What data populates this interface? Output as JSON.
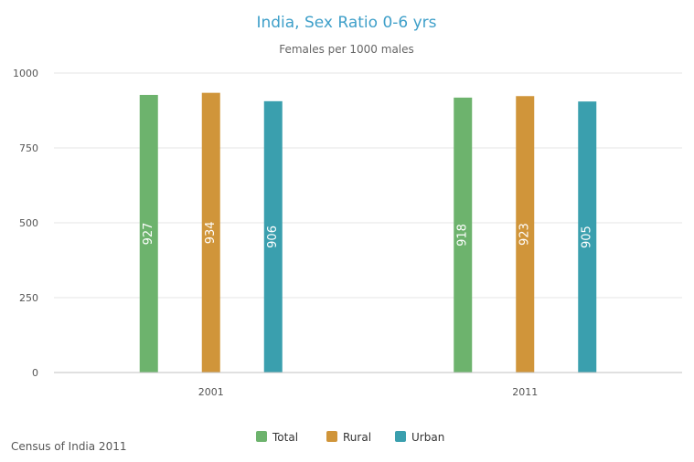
{
  "chart_data": {
    "type": "bar",
    "title": "India, Sex Ratio 0-6 yrs",
    "subtitle": "Females per 1000 males",
    "categories": [
      "2001",
      "2011"
    ],
    "series": [
      {
        "name": "Total",
        "color": "#6db36d",
        "values": [
          927,
          918
        ]
      },
      {
        "name": "Rural",
        "color": "#d0953a",
        "values": [
          934,
          923
        ]
      },
      {
        "name": "Urban",
        "color": "#3a9fae",
        "values": [
          906,
          905
        ]
      }
    ],
    "ylim": [
      0,
      1000
    ],
    "yticks": [
      0,
      250,
      500,
      750,
      1000
    ],
    "grid": true,
    "legend_position": "bottom-center",
    "data_labels": "inside, rotated"
  },
  "credit": "Census of India 2011"
}
